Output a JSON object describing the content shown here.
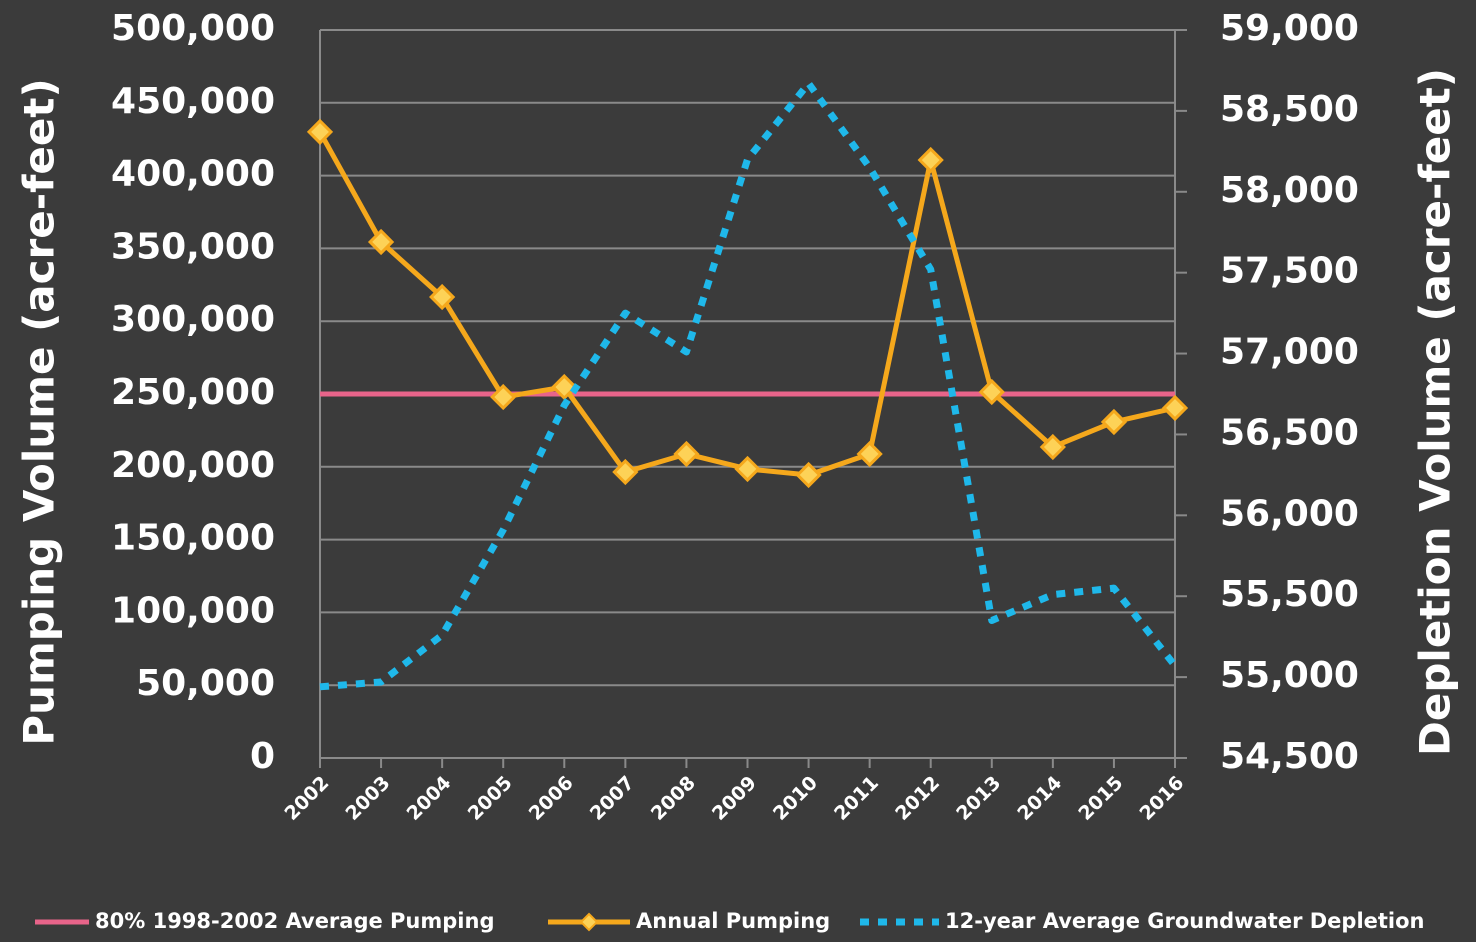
{
  "chart_data": {
    "type": "line",
    "categories": [
      "2002",
      "2003",
      "2004",
      "2005",
      "2006",
      "2007",
      "2008",
      "2009",
      "2010",
      "2011",
      "2012",
      "2013",
      "2014",
      "2015",
      "2016"
    ],
    "y_label": "Pumping Volume (acre-feet)",
    "y2_label": "Depletion Volume (acre-feet)",
    "ylim": [
      0,
      500000
    ],
    "yticks": [
      0,
      {
        "value": 50000,
        "label": "50,000"
      },
      {
        "value": 100000,
        "label": "100,000"
      },
      {
        "value": 150000,
        "label": "150,000"
      },
      {
        "value": 200000,
        "label": "200,000"
      },
      {
        "value": 250000,
        "label": "250,000"
      },
      {
        "value": 300000,
        "label": "300,000"
      },
      {
        "value": 350000,
        "label": "350,000"
      },
      {
        "value": 400000,
        "label": "400,000"
      },
      {
        "value": 450000,
        "label": "450,000"
      },
      {
        "value": 500000,
        "label": "500,000"
      }
    ],
    "y2lim": [
      54500,
      59000
    ],
    "y2ticks": [
      {
        "value": 54500,
        "label": "54,500"
      },
      {
        "value": 55000,
        "label": "55,000"
      },
      {
        "value": 55500,
        "label": "55,500"
      },
      {
        "value": 56000,
        "label": "56,000"
      },
      {
        "value": 56500,
        "label": "56,500"
      },
      {
        "value": 57000,
        "label": "57,000"
      },
      {
        "value": 57500,
        "label": "57,500"
      },
      {
        "value": 58000,
        "label": "58,000"
      },
      {
        "value": 58500,
        "label": "58,500"
      },
      {
        "value": 59000,
        "label": "59,000"
      }
    ],
    "grid": true,
    "legend": "bottom",
    "series": [
      {
        "name": "80% 1998-2002 Average Pumping",
        "color": "#e8648a",
        "style": "solid",
        "marker": "none",
        "values": [
          250000,
          250000,
          250000,
          250000,
          250000,
          250000,
          250000,
          250000,
          250000,
          250000,
          250000,
          250000,
          250000,
          250000,
          250000
        ]
      },
      {
        "name": "Annual Pumping",
        "color": "#f5a81c",
        "style": "solid",
        "marker": "diamond",
        "values": [
          430000,
          354400,
          316600,
          247900,
          254800,
          196400,
          208800,
          198500,
          194400,
          208800,
          410700,
          251400,
          213600,
          230800,
          240400
        ]
      },
      {
        "name": "12-year Average Groundwater Depletion",
        "color": "#1fb8ea",
        "style": "dotted",
        "marker": "none",
        "axis": "y2",
        "values": [
          54940,
          54970,
          55260,
          55910,
          56680,
          57250,
          57010,
          58200,
          58670,
          58150,
          57520,
          55350,
          55510,
          55550,
          55070
        ]
      }
    ]
  }
}
